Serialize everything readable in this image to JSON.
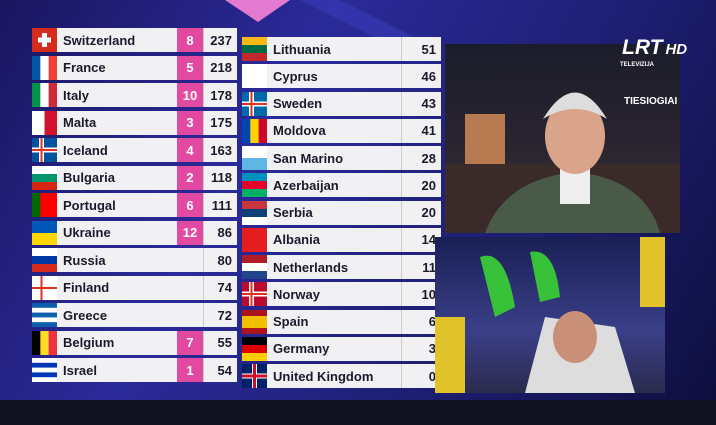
{
  "scoreboard": {
    "left": [
      {
        "country": "Switzerland",
        "points": 8,
        "total": 237
      },
      {
        "country": "France",
        "points": 5,
        "total": 218
      },
      {
        "country": "Italy",
        "points": 10,
        "total": 178
      },
      {
        "country": "Malta",
        "points": 3,
        "total": 175
      },
      {
        "country": "Iceland",
        "points": 4,
        "total": 163
      },
      {
        "country": "Bulgaria",
        "points": 2,
        "total": 118
      },
      {
        "country": "Portugal",
        "points": 6,
        "total": 111
      },
      {
        "country": "Ukraine",
        "points": 12,
        "total": 86
      },
      {
        "country": "Russia",
        "points": null,
        "total": 80
      },
      {
        "country": "Finland",
        "points": null,
        "total": 74
      },
      {
        "country": "Greece",
        "points": null,
        "total": 72
      },
      {
        "country": "Belgium",
        "points": 7,
        "total": 55
      },
      {
        "country": "Israel",
        "points": 1,
        "total": 54
      }
    ],
    "right": [
      {
        "country": "Lithuania",
        "total": 51
      },
      {
        "country": "Cyprus",
        "total": 46
      },
      {
        "country": "Sweden",
        "total": 43
      },
      {
        "country": "Moldova",
        "total": 41
      },
      {
        "country": "San Marino",
        "total": 28
      },
      {
        "country": "Azerbaijan",
        "total": 20
      },
      {
        "country": "Serbia",
        "total": 20
      },
      {
        "country": "Albania",
        "total": 14
      },
      {
        "country": "Netherlands",
        "total": 11
      },
      {
        "country": "Norway",
        "total": 10
      },
      {
        "country": "Spain",
        "total": 6
      },
      {
        "country": "Germany",
        "total": 3
      },
      {
        "country": "United Kingdom",
        "total": 0
      }
    ]
  },
  "broadcast": {
    "logo": "LRT",
    "logo_hd": "HD",
    "logo_sub": "TELEVIZIJA",
    "live": "TIESIOGIAI"
  }
}
